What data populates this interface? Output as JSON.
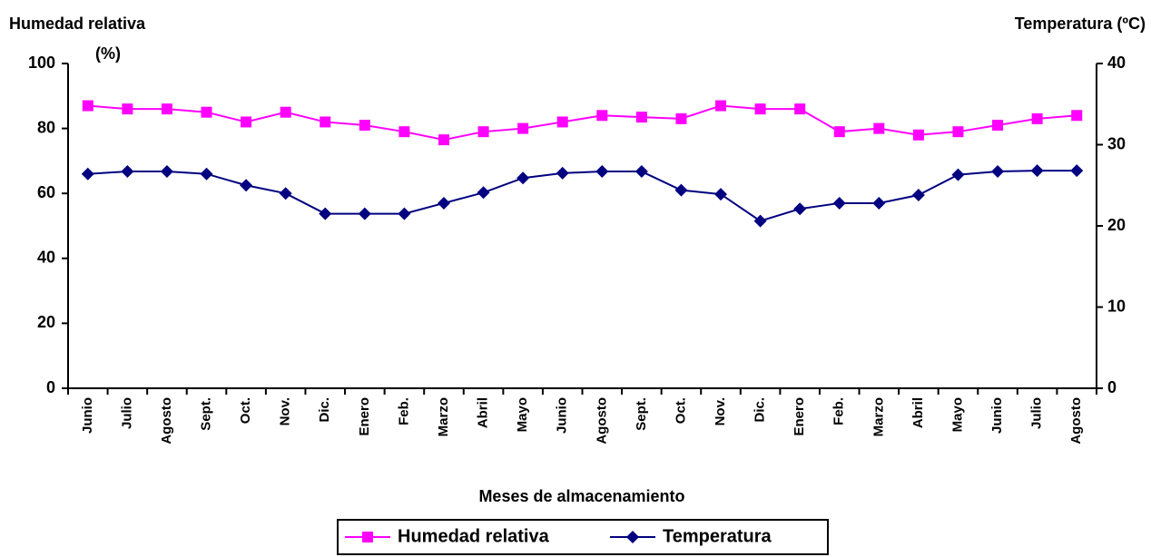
{
  "chart_data": {
    "type": "line",
    "ylabel": [
      "Humedad relativa",
      "(%)"
    ],
    "y2label": "Temperatura (ºC)",
    "xlabel": "Meses de almacenamiento",
    "categories": [
      "Junio",
      "Julio",
      "Agosto",
      "Sept.",
      "Oct.",
      "Nov.",
      "Dic.",
      "Enero",
      "Feb.",
      "Marzo",
      "Abril",
      "Mayo",
      "Junio",
      "Agosto",
      "Sept.",
      "Oct.",
      "Nov.",
      "Dic.",
      "Enero",
      "Feb.",
      "Marzo",
      "Abril",
      "Mayo",
      "Junio",
      "Julio",
      "Agosto"
    ],
    "series": [
      {
        "name": "Humedad relativa",
        "color": "#ff00ff",
        "marker": "square",
        "values": [
          87,
          86,
          86,
          85,
          82,
          85,
          82,
          81,
          79,
          76.5,
          79,
          80,
          82,
          84,
          83.5,
          83,
          87,
          86,
          86,
          79,
          80,
          78,
          79,
          81,
          83,
          84
        ]
      },
      {
        "name": "Temperatura",
        "color": "#000080",
        "marker": "diamond",
        "axis": "y2",
        "values": [
          26.4,
          26.7,
          26.7,
          26.4,
          25,
          24,
          21.5,
          21.5,
          21.5,
          22.8,
          24.1,
          25.9,
          26.5,
          26.7,
          26.7,
          24.4,
          23.9,
          20.6,
          22.1,
          22.8,
          22.8,
          23.8,
          26.3,
          26.7,
          26.8,
          26.8
        ]
      }
    ],
    "ylim": [
      0,
      100
    ],
    "yticks": [
      0,
      20,
      40,
      60,
      80,
      100
    ],
    "y2lim": [
      0,
      40
    ],
    "y2ticks": [
      0,
      10,
      20,
      30,
      40
    ],
    "legend": "bottom"
  }
}
